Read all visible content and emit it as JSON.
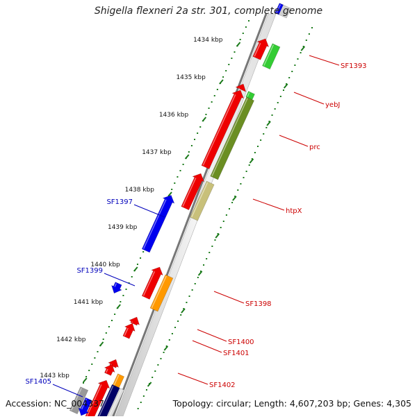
{
  "title": "Shigella flexneri 2a str. 301, complete genome",
  "footer": {
    "accession": "Accession: NC_004337",
    "summary": "Topology: circular; Length: 4,607,203 bp; Genes: 4,305"
  },
  "ticks": [
    "1434 kbp",
    "1435 kbp",
    "1436 kbp",
    "1437 kbp",
    "1438 kbp",
    "1439 kbp",
    "1440 kbp",
    "1441 kbp",
    "1442 kbp",
    "1443 kbp"
  ],
  "colors": {
    "backbone": "#777777",
    "tick": "#1a7a1a",
    "label_forward": "#cc0000",
    "label_reverse": "#0000bb",
    "gene_red": "#ee0000",
    "gene_blue": "#0000ee",
    "gene_green": "#33cc33",
    "gene_olive": "#6b8e23",
    "gene_khaki": "#c8c07a",
    "gene_orange": "#ff9900",
    "gene_navy": "#000066",
    "gene_gray": "#999999"
  },
  "labels_right": [
    "SF1393",
    "yebJ",
    "prc",
    "htpX",
    "SF1398",
    "SF1400",
    "SF1401",
    "SF1402"
  ],
  "labels_left": [
    "SF1397",
    "SF1399",
    "SF1405"
  ]
}
